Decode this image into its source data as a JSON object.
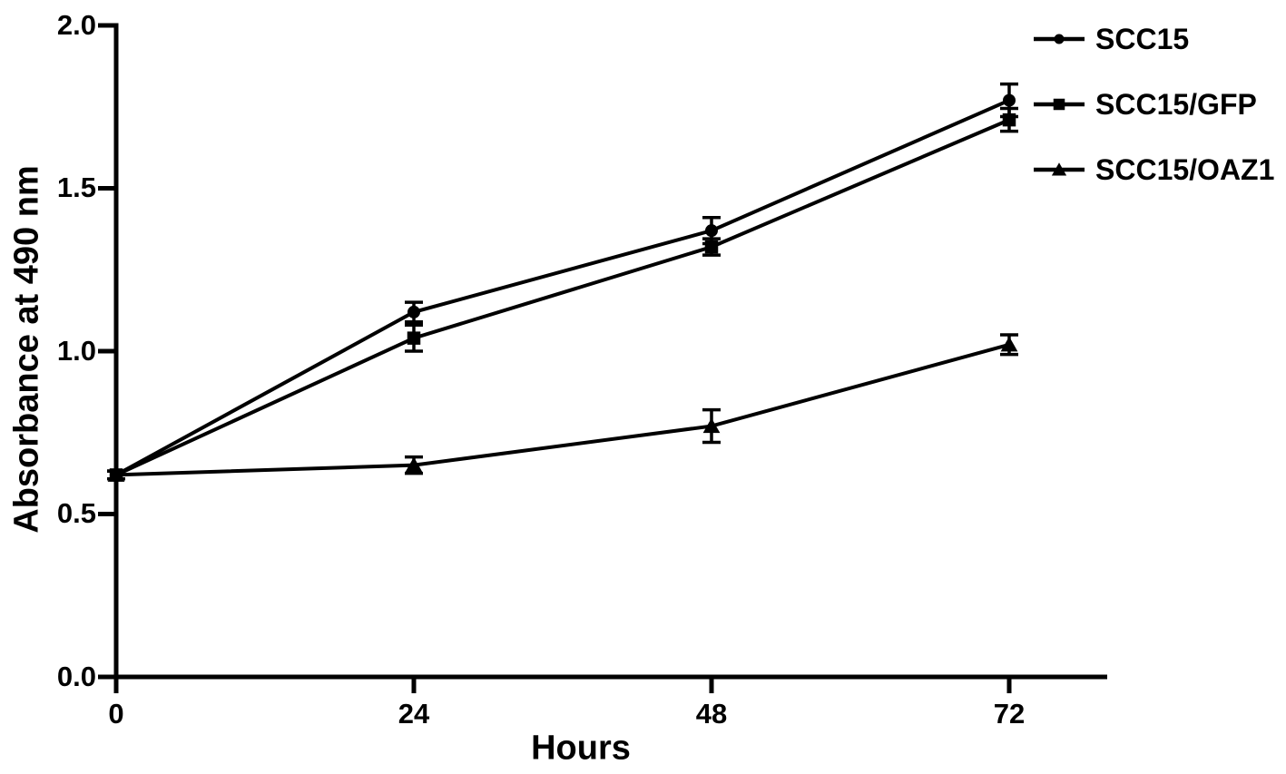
{
  "figure": {
    "background": "#ffffff",
    "ink": "#000000"
  },
  "chart_data": {
    "type": "line",
    "title": "",
    "xlabel": "Hours",
    "ylabel": "Absorbance at 490 nm",
    "x": [
      0,
      24,
      48,
      72
    ],
    "x_tick_labels": [
      "0",
      "24",
      "48",
      "72"
    ],
    "y_ticks": [
      2.0,
      1.5,
      1.0,
      0.5,
      0.0
    ],
    "y_tick_labels": [
      "2.0",
      "1.5",
      "1.0",
      "0.5",
      "0.0"
    ],
    "xlim": [
      0,
      80
    ],
    "ylim": [
      0.0,
      2.0
    ],
    "grid": false,
    "legend_position": "top-right",
    "series": [
      {
        "name": "SCC15",
        "marker": "circle",
        "color": "#000000",
        "values": [
          0.62,
          1.12,
          1.37,
          1.77
        ],
        "errors": [
          0.012,
          0.03,
          0.04,
          0.05
        ]
      },
      {
        "name": "SCC15/GFP",
        "marker": "square",
        "color": "#000000",
        "values": [
          0.62,
          1.04,
          1.32,
          1.71
        ],
        "errors": [
          0.012,
          0.04,
          0.025,
          0.035
        ]
      },
      {
        "name": "SCC15/OAZ1",
        "marker": "triangle",
        "color": "#000000",
        "values": [
          0.62,
          0.65,
          0.77,
          1.02
        ],
        "errors": [
          0.012,
          0.025,
          0.05,
          0.03
        ]
      }
    ]
  }
}
